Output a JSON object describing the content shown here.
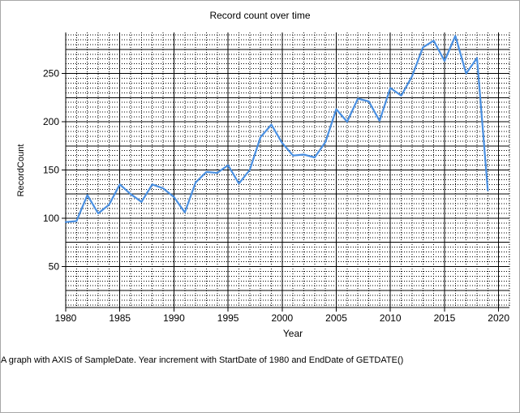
{
  "chart_data": {
    "type": "line",
    "title": "Record count over time",
    "xlabel": "Year",
    "ylabel": "RecordCount",
    "xlim": [
      1980,
      2021
    ],
    "ylim": [
      7.5,
      292.5
    ],
    "x_ticks": [
      1980,
      1985,
      1990,
      1995,
      2000,
      2005,
      2010,
      2015,
      2020
    ],
    "y_ticks": [
      50,
      100,
      150,
      200,
      250
    ],
    "grid": "major and minor",
    "line_color": "#4a90e2",
    "series": [
      {
        "x": [
          1980,
          1981,
          1982,
          1983,
          1984,
          1985,
          1986,
          1987,
          1988,
          1989,
          1990,
          1991,
          1992,
          1993,
          1994,
          1995,
          1996,
          1997,
          1998,
          1999,
          2000,
          2001,
          2002,
          2003,
          2004,
          2005,
          2006,
          2007,
          2008,
          2009,
          2010,
          2011,
          2012,
          2013,
          2014,
          2015,
          2016,
          2017,
          2018,
          2019
        ],
        "values": [
          96,
          97,
          124,
          105,
          114,
          135,
          125,
          117,
          135,
          131,
          122,
          106,
          137,
          148,
          147,
          155,
          136,
          150,
          184,
          197,
          178,
          165,
          166,
          163,
          179,
          213,
          200,
          224,
          221,
          201,
          235,
          227,
          247,
          277,
          284,
          263,
          289,
          250,
          266,
          129
        ]
      }
    ]
  },
  "caption": "A graph with AXIS of SampleDate.  Year increment with StartDate of 1980 and EndDate of GETDATE()"
}
